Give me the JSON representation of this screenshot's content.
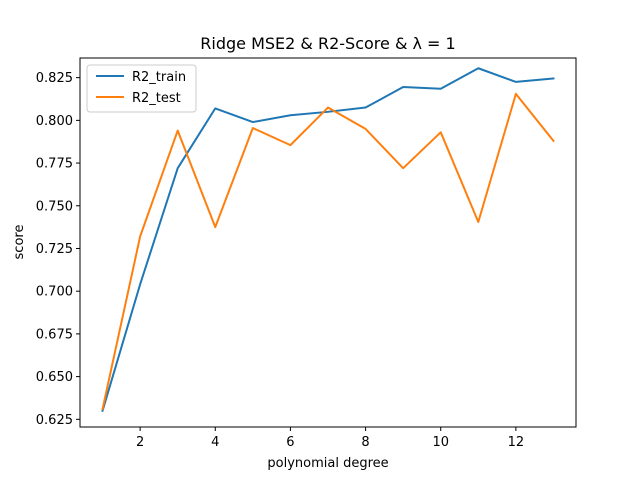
{
  "chart_data": {
    "type": "line",
    "title": "Ridge MSE2 & R2-Score &  λ = 1",
    "xlabel": "polynomial degree",
    "ylabel": "score",
    "x": [
      1,
      2,
      3,
      4,
      5,
      6,
      7,
      8,
      9,
      10,
      11,
      12,
      13
    ],
    "xlim": [
      0.4,
      13.6
    ],
    "ylim": [
      0.6205,
      0.8365
    ],
    "xticks": [
      2,
      4,
      6,
      8,
      10,
      12
    ],
    "yticks": [
      0.625,
      0.65,
      0.675,
      0.7,
      0.725,
      0.75,
      0.775,
      0.8,
      0.825
    ],
    "ytick_labels": [
      "0.625",
      "0.650",
      "0.675",
      "0.700",
      "0.725",
      "0.750",
      "0.775",
      "0.800",
      "0.825"
    ],
    "grid": false,
    "legend_position": "upper-left",
    "series": [
      {
        "name": "R2_train",
        "color": "#1f77b4",
        "values": [
          0.63,
          0.704,
          0.772,
          0.807,
          0.799,
          0.803,
          0.805,
          0.8075,
          0.8195,
          0.8185,
          0.8305,
          0.8225,
          0.8245
        ]
      },
      {
        "name": "R2_test",
        "color": "#ff7f0e",
        "values": [
          0.631,
          0.732,
          0.794,
          0.7375,
          0.7955,
          0.7855,
          0.8075,
          0.795,
          0.772,
          0.793,
          0.7405,
          0.8155,
          0.788
        ]
      }
    ]
  }
}
